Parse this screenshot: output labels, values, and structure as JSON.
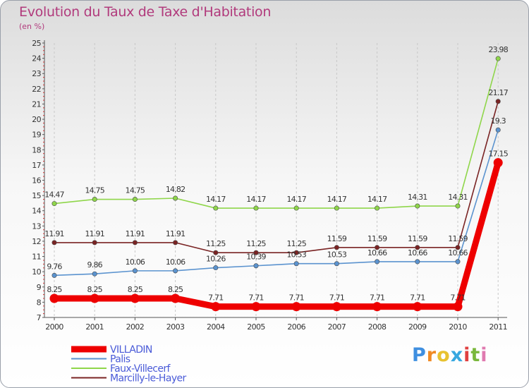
{
  "chart_data": {
    "type": "line",
    "title": "Evolution du Taux de Taxe d'Habitation",
    "subtitle": "(en %)",
    "xlabel": "",
    "ylabel": "",
    "ylim": [
      7,
      25
    ],
    "yticks": [
      7,
      8,
      9,
      10,
      11,
      12,
      13,
      14,
      15,
      16,
      17,
      18,
      19,
      20,
      21,
      22,
      23,
      24,
      25
    ],
    "categories": [
      "2000",
      "2001",
      "2002",
      "2003",
      "2004",
      "2005",
      "2006",
      "2007",
      "2008",
      "2009",
      "2010",
      "2011"
    ],
    "grid": "vertical-dashed",
    "series": [
      {
        "name": "VILLADIN",
        "color": "#ee0000",
        "width": "thick",
        "values": [
          8.25,
          8.25,
          8.25,
          8.25,
          7.71,
          7.71,
          7.71,
          7.71,
          7.71,
          7.71,
          7.71,
          17.15
        ],
        "labels": [
          "8.25",
          "8.25",
          "8.25",
          "8.25",
          "7.71",
          "7.71",
          "7.71",
          "7.71",
          "7.71",
          "7.71",
          "7.71",
          "17.15"
        ]
      },
      {
        "name": "Palis",
        "color": "#5b93cf",
        "width": "thin",
        "values": [
          9.76,
          9.86,
          10.06,
          10.06,
          10.26,
          10.39,
          10.53,
          10.53,
          10.66,
          10.66,
          10.66,
          19.3
        ],
        "labels": [
          "9.76",
          "9.86",
          "10.06",
          "10.06",
          "10.26",
          "10.39",
          "10.53",
          "10.53",
          "10.66",
          "10.66",
          "10.66",
          "19.3"
        ]
      },
      {
        "name": "Faux-Villecerf",
        "color": "#8fd64a",
        "width": "thin",
        "values": [
          14.47,
          14.75,
          14.75,
          14.82,
          14.17,
          14.17,
          14.17,
          14.17,
          14.17,
          14.31,
          14.31,
          23.98
        ],
        "labels": [
          "14.47",
          "14.75",
          "14.75",
          "14.82",
          "14.17",
          "14.17",
          "14.17",
          "14.17",
          "14.17",
          "14.31",
          "14.31",
          "23.98"
        ]
      },
      {
        "name": "Marcilly-le-Hayer",
        "color": "#7a2424",
        "width": "thin",
        "values": [
          11.91,
          11.91,
          11.91,
          11.91,
          11.25,
          11.25,
          11.25,
          11.59,
          11.59,
          11.59,
          11.59,
          21.17
        ],
        "labels": [
          "11.91",
          "11.91",
          "11.91",
          "11.91",
          "11.25",
          "11.25",
          "11.25",
          "11.59",
          "11.59",
          "11.59",
          "11.59",
          "21.17"
        ]
      }
    ],
    "legend_position": "bottom-left"
  },
  "logo": {
    "letters": [
      "P",
      "r",
      "o",
      "x",
      "i",
      "t",
      "i"
    ],
    "colors": [
      "#3f8fe0",
      "#f08a24",
      "#e8c230",
      "#37a8e0",
      "#e04040",
      "#7ab83c",
      "#e07ab0"
    ]
  }
}
